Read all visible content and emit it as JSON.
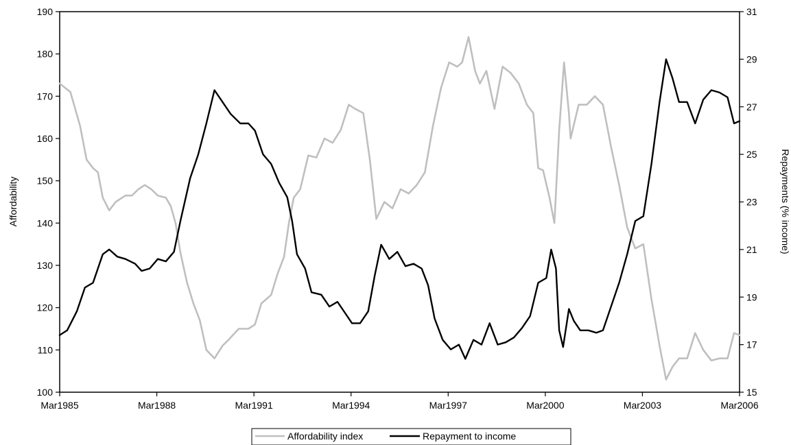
{
  "chart_data": {
    "type": "line",
    "title": "",
    "xlabel": "",
    "ylabel_left": "Affordability",
    "ylabel_right": "Repayments (% income)",
    "ylim_left": [
      100,
      190
    ],
    "ylim_right": [
      15,
      31
    ],
    "yticks_left": [
      100,
      110,
      120,
      130,
      140,
      150,
      160,
      170,
      180,
      190
    ],
    "yticks_right": [
      15,
      17,
      19,
      21,
      23,
      25,
      27,
      29,
      31
    ],
    "xlim": [
      1985.17,
      2006.17
    ],
    "xticks": [
      {
        "x": 1985.17,
        "label": "Mar1985"
      },
      {
        "x": 1988.17,
        "label": "Mar1988"
      },
      {
        "x": 1991.17,
        "label": "Mar1991"
      },
      {
        "x": 1994.17,
        "label": "Mar1994"
      },
      {
        "x": 1997.17,
        "label": "Mar1997"
      },
      {
        "x": 2000.17,
        "label": "Mar2000"
      },
      {
        "x": 2003.17,
        "label": "Mar2003"
      },
      {
        "x": 2006.17,
        "label": "Mar2006"
      }
    ],
    "grid": false,
    "legend_position": "bottom-center",
    "series": [
      {
        "name": "Affordability index",
        "axis": "left",
        "color": "#bfbfbf",
        "points": [
          [
            1985.17,
            173
          ],
          [
            1985.5,
            171
          ],
          [
            1985.8,
            163
          ],
          [
            1986.0,
            155
          ],
          [
            1986.2,
            153
          ],
          [
            1986.35,
            152
          ],
          [
            1986.5,
            146
          ],
          [
            1986.7,
            143
          ],
          [
            1986.9,
            145
          ],
          [
            1987.2,
            146.5
          ],
          [
            1987.4,
            146.5
          ],
          [
            1987.6,
            148
          ],
          [
            1987.8,
            149
          ],
          [
            1988.0,
            148
          ],
          [
            1988.2,
            146.5
          ],
          [
            1988.45,
            146
          ],
          [
            1988.6,
            144
          ],
          [
            1988.75,
            140
          ],
          [
            1988.9,
            133
          ],
          [
            1989.1,
            126
          ],
          [
            1989.3,
            121
          ],
          [
            1989.5,
            117
          ],
          [
            1989.7,
            110
          ],
          [
            1989.95,
            108
          ],
          [
            1990.2,
            111
          ],
          [
            1990.4,
            112.5
          ],
          [
            1990.7,
            115
          ],
          [
            1991.0,
            115
          ],
          [
            1991.2,
            116
          ],
          [
            1991.4,
            121
          ],
          [
            1991.7,
            123
          ],
          [
            1991.9,
            128
          ],
          [
            1992.1,
            132
          ],
          [
            1992.25,
            140
          ],
          [
            1992.4,
            146
          ],
          [
            1992.6,
            148
          ],
          [
            1992.85,
            156
          ],
          [
            1993.1,
            155.5
          ],
          [
            1993.35,
            160
          ],
          [
            1993.6,
            159
          ],
          [
            1993.85,
            162
          ],
          [
            1994.1,
            168
          ],
          [
            1994.3,
            167
          ],
          [
            1994.55,
            166
          ],
          [
            1994.75,
            155
          ],
          [
            1994.95,
            141
          ],
          [
            1995.2,
            145
          ],
          [
            1995.45,
            143.5
          ],
          [
            1995.7,
            148
          ],
          [
            1995.95,
            147
          ],
          [
            1996.2,
            149
          ],
          [
            1996.45,
            152
          ],
          [
            1996.7,
            163
          ],
          [
            1996.95,
            172
          ],
          [
            1997.2,
            178
          ],
          [
            1997.45,
            177
          ],
          [
            1997.6,
            178
          ],
          [
            1997.8,
            184
          ],
          [
            1998.0,
            176
          ],
          [
            1998.15,
            173
          ],
          [
            1998.35,
            176
          ],
          [
            1998.6,
            167
          ],
          [
            1998.85,
            177
          ],
          [
            1999.1,
            175.5
          ],
          [
            1999.35,
            173
          ],
          [
            1999.6,
            168
          ],
          [
            1999.8,
            166
          ],
          [
            1999.95,
            153
          ],
          [
            2000.1,
            152.5
          ],
          [
            2000.3,
            146
          ],
          [
            2000.45,
            140
          ],
          [
            2000.6,
            162
          ],
          [
            2000.75,
            178
          ],
          [
            2000.9,
            166
          ],
          [
            2000.95,
            160
          ],
          [
            2001.2,
            168
          ],
          [
            2001.45,
            168
          ],
          [
            2001.7,
            170
          ],
          [
            2001.95,
            168
          ],
          [
            2002.2,
            158
          ],
          [
            2002.45,
            149
          ],
          [
            2002.7,
            139
          ],
          [
            2002.95,
            134
          ],
          [
            2003.2,
            135
          ],
          [
            2003.45,
            122
          ],
          [
            2003.7,
            111
          ],
          [
            2003.9,
            103
          ],
          [
            2004.1,
            106
          ],
          [
            2004.3,
            108
          ],
          [
            2004.55,
            108
          ],
          [
            2004.8,
            114
          ],
          [
            2005.05,
            110
          ],
          [
            2005.3,
            107.5
          ],
          [
            2005.55,
            108
          ],
          [
            2005.8,
            108
          ],
          [
            2006.0,
            114
          ],
          [
            2006.17,
            113.5
          ]
        ]
      },
      {
        "name": "Repayment to income",
        "axis": "right",
        "color": "#000000",
        "points": [
          [
            1985.17,
            17.4
          ],
          [
            1985.4,
            17.6
          ],
          [
            1985.7,
            18.4
          ],
          [
            1985.95,
            19.4
          ],
          [
            1986.2,
            19.6
          ],
          [
            1986.35,
            20.2
          ],
          [
            1986.5,
            20.8
          ],
          [
            1986.7,
            21.0
          ],
          [
            1986.95,
            20.7
          ],
          [
            1987.2,
            20.6
          ],
          [
            1987.5,
            20.4
          ],
          [
            1987.7,
            20.1
          ],
          [
            1987.95,
            20.2
          ],
          [
            1988.2,
            20.6
          ],
          [
            1988.45,
            20.5
          ],
          [
            1988.7,
            20.9
          ],
          [
            1988.9,
            22.2
          ],
          [
            1989.2,
            24.0
          ],
          [
            1989.45,
            25.0
          ],
          [
            1989.7,
            26.3
          ],
          [
            1989.95,
            27.7
          ],
          [
            1990.2,
            27.2
          ],
          [
            1990.45,
            26.7
          ],
          [
            1990.75,
            26.3
          ],
          [
            1991.0,
            26.3
          ],
          [
            1991.2,
            26.0
          ],
          [
            1991.45,
            25.0
          ],
          [
            1991.7,
            24.6
          ],
          [
            1991.95,
            23.8
          ],
          [
            1992.2,
            23.2
          ],
          [
            1992.35,
            22.2
          ],
          [
            1992.5,
            20.8
          ],
          [
            1992.75,
            20.2
          ],
          [
            1992.95,
            19.2
          ],
          [
            1993.25,
            19.1
          ],
          [
            1993.5,
            18.6
          ],
          [
            1993.75,
            18.8
          ],
          [
            1994.0,
            18.3
          ],
          [
            1994.2,
            17.9
          ],
          [
            1994.45,
            17.9
          ],
          [
            1994.7,
            18.4
          ],
          [
            1994.9,
            19.9
          ],
          [
            1995.1,
            21.2
          ],
          [
            1995.35,
            20.6
          ],
          [
            1995.6,
            20.9
          ],
          [
            1995.85,
            20.3
          ],
          [
            1996.1,
            20.4
          ],
          [
            1996.35,
            20.2
          ],
          [
            1996.55,
            19.5
          ],
          [
            1996.75,
            18.1
          ],
          [
            1997.0,
            17.2
          ],
          [
            1997.25,
            16.8
          ],
          [
            1997.5,
            17.0
          ],
          [
            1997.7,
            16.4
          ],
          [
            1997.95,
            17.2
          ],
          [
            1998.2,
            17.0
          ],
          [
            1998.45,
            17.9
          ],
          [
            1998.7,
            17.0
          ],
          [
            1998.95,
            17.1
          ],
          [
            1999.2,
            17.3
          ],
          [
            1999.45,
            17.7
          ],
          [
            1999.7,
            18.2
          ],
          [
            1999.95,
            19.6
          ],
          [
            2000.2,
            19.8
          ],
          [
            2000.35,
            21.0
          ],
          [
            2000.5,
            20.2
          ],
          [
            2000.6,
            17.6
          ],
          [
            2000.72,
            16.9
          ],
          [
            2000.9,
            18.5
          ],
          [
            2001.05,
            18.0
          ],
          [
            2001.25,
            17.6
          ],
          [
            2001.5,
            17.6
          ],
          [
            2001.75,
            17.5
          ],
          [
            2001.95,
            17.6
          ],
          [
            2002.2,
            18.6
          ],
          [
            2002.45,
            19.6
          ],
          [
            2002.7,
            20.8
          ],
          [
            2002.95,
            22.2
          ],
          [
            2003.2,
            22.4
          ],
          [
            2003.45,
            24.6
          ],
          [
            2003.7,
            27.2
          ],
          [
            2003.9,
            29.0
          ],
          [
            2004.1,
            28.2
          ],
          [
            2004.3,
            27.2
          ],
          [
            2004.55,
            27.2
          ],
          [
            2004.8,
            26.3
          ],
          [
            2005.05,
            27.3
          ],
          [
            2005.3,
            27.7
          ],
          [
            2005.55,
            27.6
          ],
          [
            2005.8,
            27.4
          ],
          [
            2006.0,
            26.3
          ],
          [
            2006.17,
            26.4
          ]
        ]
      }
    ]
  }
}
